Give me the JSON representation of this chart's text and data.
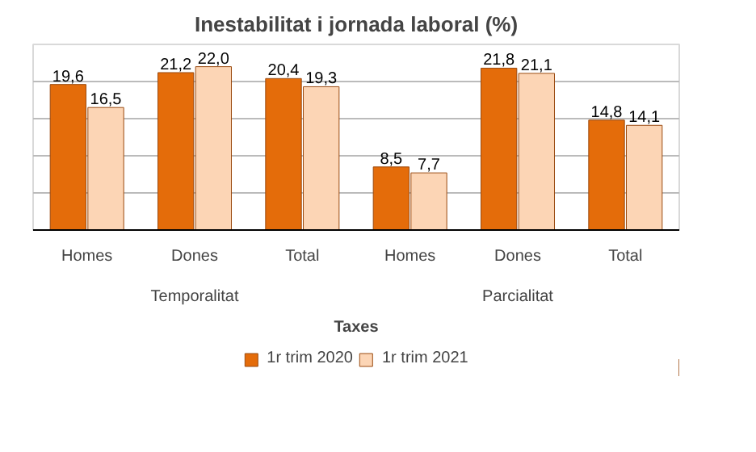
{
  "chart_data": {
    "type": "bar",
    "title": "Inestabilitat i jornada laboral (%)",
    "xlabel": "Taxes",
    "categories": [
      "Homes",
      "Dones",
      "Total",
      "Homes",
      "Dones",
      "Total"
    ],
    "annotations": [
      "Temporalitat",
      "Parcialitat"
    ],
    "series": [
      {
        "name": "1r trim 2020",
        "color": "#e46c0a",
        "values": [
          19.6,
          21.2,
          20.4,
          8.5,
          21.8,
          14.8
        ],
        "value_labels": [
          "19,6",
          "21,2",
          "20,4",
          "8,5",
          "21,8",
          "14,8"
        ]
      },
      {
        "name": "1r trim 2021",
        "color": "#fcd5b5",
        "values": [
          16.5,
          22.0,
          19.3,
          7.7,
          21.1,
          14.1
        ],
        "value_labels": [
          "16,5",
          "22,0",
          "19,3",
          "7,7",
          "21,1",
          "14,1"
        ]
      }
    ],
    "ylim": [
      0,
      25
    ],
    "yticks": [
      {
        "value": 0,
        "label": null
      },
      {
        "value": 5,
        "label": null
      },
      {
        "value": 10,
        "label": null
      },
      {
        "value": 15,
        "label": null
      },
      {
        "value": 20,
        "label": null
      }
    ],
    "grid": "y",
    "legend": "bottom",
    "tick_labels": "x"
  }
}
